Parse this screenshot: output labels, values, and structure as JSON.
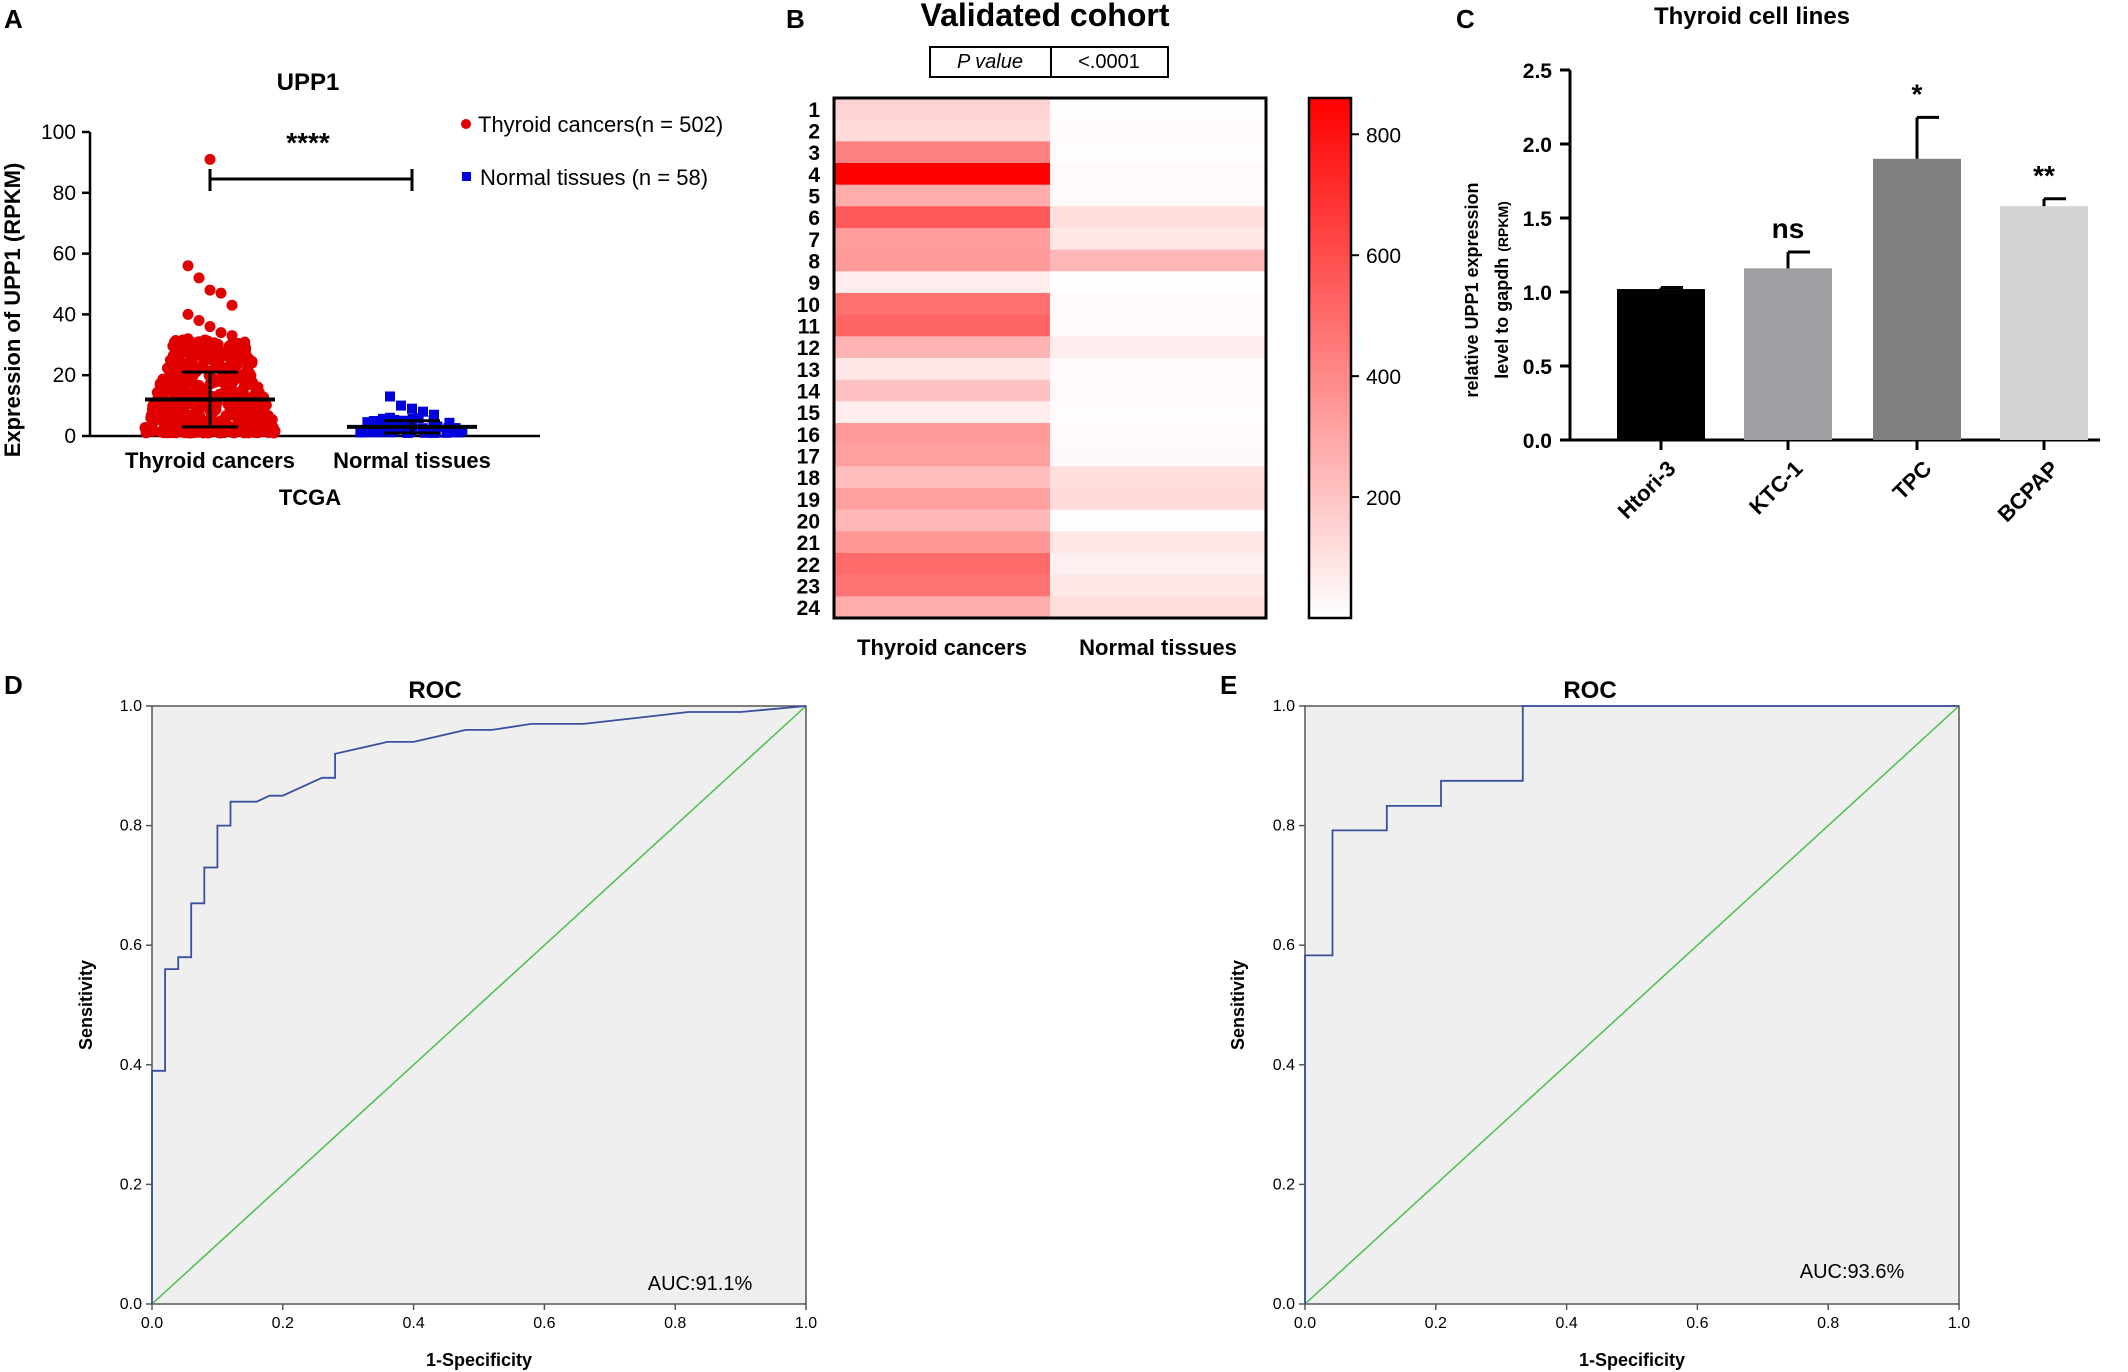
{
  "chart_data": [
    {
      "panel": "A",
      "type": "scatter",
      "title": "UPP1",
      "ylabel": "Expression of UPP1 (RPKM)",
      "xlabel": "TCGA",
      "ylim": [
        0,
        100
      ],
      "yticks": [
        0,
        20,
        40,
        60,
        80,
        100
      ],
      "categories": [
        "Thyroid cancers",
        "Normal tissues"
      ],
      "significance": "****",
      "legend": [
        "Thyroid cancers(n = 502)",
        "Normal tissues (n = 58)"
      ],
      "legend_position": "top-right",
      "colors": [
        "#e00000",
        "#0000dd"
      ],
      "series": [
        {
          "name": "Thyroid cancers(n = 502)",
          "n": 502,
          "mean": 12,
          "sd_low": 3,
          "sd_high": 21,
          "max": 91,
          "upper_points": [
            56,
            52,
            48,
            47,
            43,
            40,
            38,
            36,
            34,
            33,
            32,
            31,
            30
          ]
        },
        {
          "name": "Normal tissues (n = 58)",
          "n": 58,
          "mean": 3,
          "sd_low": 1,
          "sd_high": 5,
          "max": 13,
          "upper_points": [
            13,
            10,
            9,
            8,
            7,
            6,
            5
          ]
        }
      ]
    },
    {
      "panel": "B",
      "type": "heatmap",
      "title": "Validated cohort",
      "pvalue_label": "P value",
      "pvalue": "<.0001",
      "columns": [
        "Thyroid cancers",
        "Normal tissues"
      ],
      "rows": [
        "1",
        "2",
        "3",
        "4",
        "5",
        "6",
        "7",
        "8",
        "9",
        "10",
        "11",
        "12",
        "13",
        "14",
        "15",
        "16",
        "17",
        "18",
        "19",
        "20",
        "21",
        "22",
        "23",
        "24"
      ],
      "values": [
        [
          150,
          8
        ],
        [
          120,
          12
        ],
        [
          420,
          10
        ],
        [
          860,
          20
        ],
        [
          280,
          15
        ],
        [
          560,
          110
        ],
        [
          330,
          80
        ],
        [
          340,
          240
        ],
        [
          60,
          8
        ],
        [
          480,
          15
        ],
        [
          520,
          15
        ],
        [
          260,
          60
        ],
        [
          80,
          20
        ],
        [
          210,
          20
        ],
        [
          60,
          10
        ],
        [
          340,
          20
        ],
        [
          320,
          25
        ],
        [
          220,
          110
        ],
        [
          320,
          120
        ],
        [
          240,
          10
        ],
        [
          350,
          80
        ],
        [
          500,
          50
        ],
        [
          470,
          80
        ],
        [
          280,
          110
        ]
      ],
      "colorbar": {
        "min": 0,
        "max": 860,
        "ticks": [
          200,
          400,
          600,
          800
        ],
        "low_color": "#ffffff",
        "high_color": "#ff0000"
      }
    },
    {
      "panel": "C",
      "type": "bar",
      "title": "Thyroid cell lines",
      "ylabel_line1": "relative UPP1 expression",
      "ylabel_line2": "level to gapdh",
      "ylabel_unit": "(RPKM)",
      "categories": [
        "Htori-3",
        "KTC-1",
        "TPC",
        "BCPAP"
      ],
      "values": [
        1.02,
        1.16,
        1.9,
        1.58
      ],
      "errors": [
        0.01,
        0.11,
        0.28,
        0.05
      ],
      "annotations": [
        "",
        "ns",
        "*",
        "**"
      ],
      "colors": [
        "#000000",
        "#a0a0a4",
        "#808080",
        "#d4d4d4"
      ],
      "ylim": [
        0,
        2.5
      ],
      "yticks": [
        "0.0",
        "0.5",
        "1.0",
        "1.5",
        "2.0",
        "2.5"
      ]
    },
    {
      "panel": "D",
      "type": "line",
      "title": "ROC",
      "xlabel": "1-Specificity",
      "ylabel": "Sensitivity",
      "xlim": [
        0,
        1
      ],
      "ylim": [
        0,
        1
      ],
      "ticks": [
        "0.0",
        "0.2",
        "0.4",
        "0.6",
        "0.8",
        "1.0"
      ],
      "auc_text": "AUC:91.1%",
      "roc_color": "#3b4fa0",
      "diag_color": "#48c048",
      "x": [
        0,
        0,
        0.02,
        0.02,
        0.04,
        0.04,
        0.06,
        0.06,
        0.08,
        0.08,
        0.1,
        0.1,
        0.12,
        0.12,
        0.16,
        0.18,
        0.2,
        0.22,
        0.24,
        0.26,
        0.28,
        0.28,
        0.32,
        0.36,
        0.4,
        0.44,
        0.48,
        0.52,
        0.58,
        0.66,
        0.74,
        0.82,
        0.9,
        1.0
      ],
      "y": [
        0,
        0.39,
        0.39,
        0.56,
        0.56,
        0.58,
        0.58,
        0.67,
        0.67,
        0.73,
        0.73,
        0.8,
        0.8,
        0.84,
        0.84,
        0.85,
        0.85,
        0.86,
        0.87,
        0.88,
        0.88,
        0.92,
        0.93,
        0.94,
        0.94,
        0.95,
        0.96,
        0.96,
        0.97,
        0.97,
        0.98,
        0.99,
        0.99,
        1.0
      ]
    },
    {
      "panel": "E",
      "type": "line",
      "title": "ROC",
      "xlabel": "1-Specificity",
      "ylabel": "Sensitivity",
      "xlim": [
        0,
        1
      ],
      "ylim": [
        0,
        1
      ],
      "ticks": [
        "0.0",
        "0.2",
        "0.4",
        "0.6",
        "0.8",
        "1.0"
      ],
      "auc_text": "AUC:93.6%",
      "roc_color": "#3b4fa0",
      "diag_color": "#48c048",
      "x": [
        0,
        0,
        0.042,
        0.042,
        0.125,
        0.125,
        0.208,
        0.208,
        0.333,
        0.333,
        1.0
      ],
      "y": [
        0,
        0.583,
        0.583,
        0.792,
        0.792,
        0.833,
        0.833,
        0.875,
        0.875,
        1.0,
        1.0
      ]
    }
  ],
  "panel_labels": [
    "A",
    "B",
    "C",
    "D",
    "E"
  ]
}
